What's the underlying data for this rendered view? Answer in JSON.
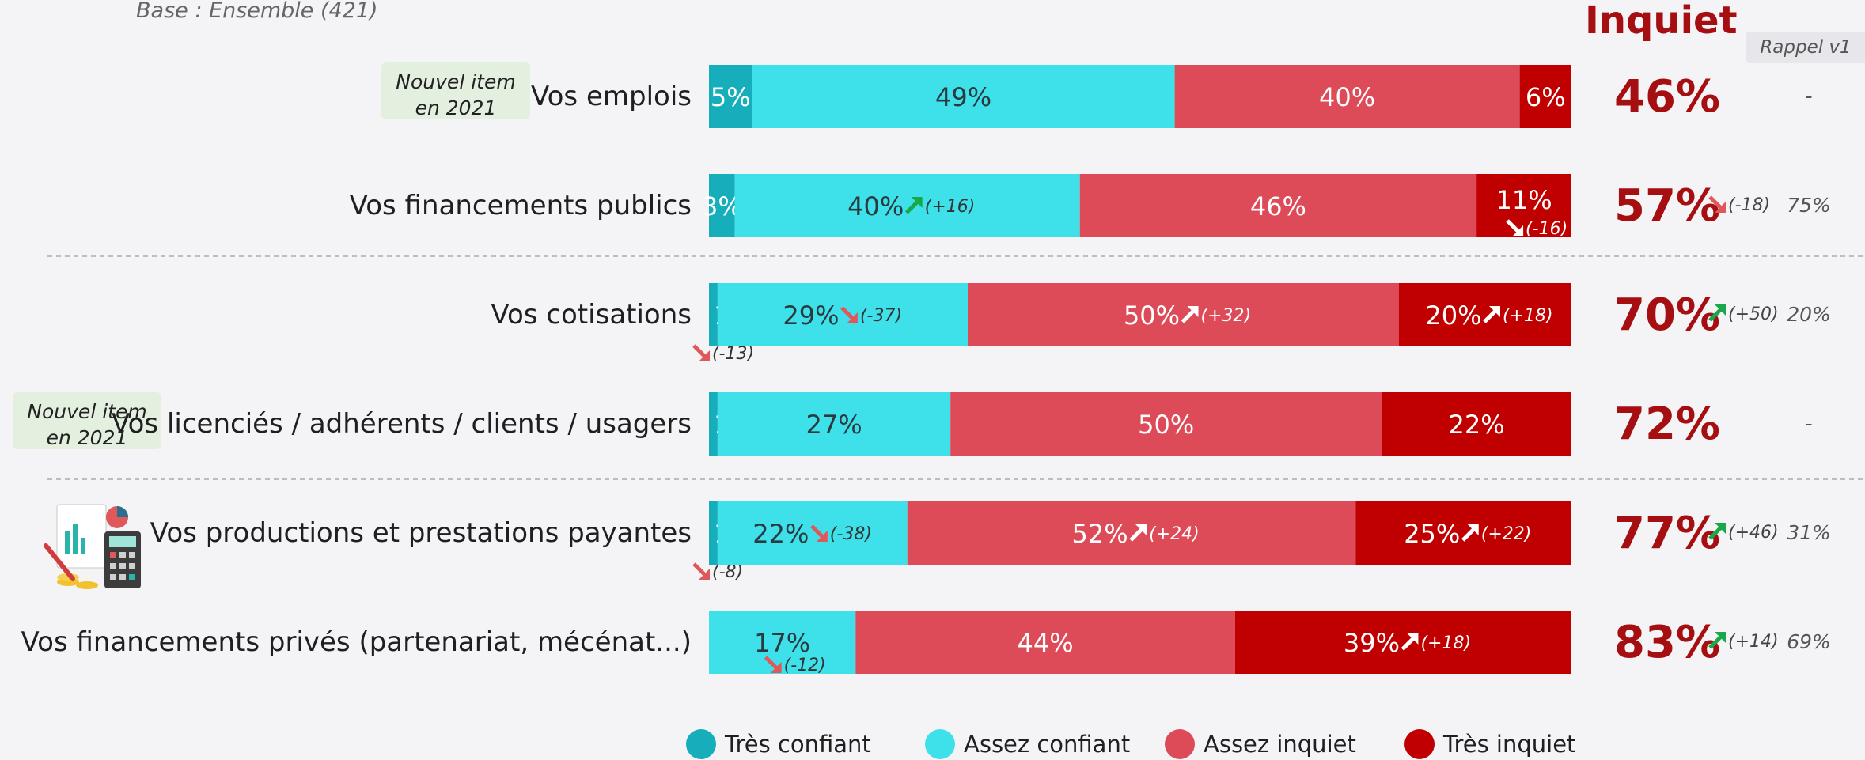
{
  "base_note": "Base : Ensemble (421)",
  "inquiet_title": "Inquiet",
  "rappel_label": "Rappel v1",
  "badges": [
    {
      "line1": "Nouvel item",
      "line2": "en 2021"
    },
    {
      "line1": "Nouvel item",
      "line2": "en 2021"
    }
  ],
  "colors": {
    "tres_confiant": "#17aebc",
    "assez_confiant": "#3ee1e9",
    "assez_inquiet": "#dd4b58",
    "tres_inquiet": "#c00000",
    "inquiet_text": "#a50f12",
    "arrow_up": "#18a84a",
    "arrow_down": "#e0585a"
  },
  "chart_data": {
    "type": "bar",
    "orientation": "horizontal",
    "stacked": true,
    "xlim": [
      0,
      100
    ],
    "legend_position": "bottom",
    "series_names": [
      "Très confiant",
      "Assez confiant",
      "Assez inquiet",
      "Très inquiet"
    ],
    "categories": [
      {
        "label": "Vos emplois",
        "new": true,
        "values": [
          5,
          49,
          40,
          6
        ],
        "value_labels": [
          "5%",
          "49%",
          "40%",
          "6%"
        ],
        "changes": [
          null,
          null,
          null,
          null
        ],
        "inquiet_total": "46%",
        "inquiet_change": null,
        "rappel": "-"
      },
      {
        "label": "Vos financements publics",
        "new": false,
        "values": [
          3,
          40,
          46,
          11
        ],
        "value_labels": [
          "3%",
          "40%",
          "46%",
          "11%"
        ],
        "changes": [
          null,
          "(+16)",
          null,
          "(-16)"
        ],
        "inquiet_total": "57%",
        "inquiet_change": "(-18)",
        "rappel": "75%"
      },
      {
        "label": "Vos cotisations",
        "new": false,
        "values": [
          1,
          29,
          50,
          20
        ],
        "value_labels": [
          "1%",
          "29%",
          "50%",
          "20%"
        ],
        "changes": [
          "(-13)",
          "(-37)",
          "(+32)",
          "(+18)"
        ],
        "inquiet_total": "70%",
        "inquiet_change": "(+50)",
        "rappel": "20%"
      },
      {
        "label": "Vos licenciés / adhérents / clients / usagers",
        "new": true,
        "values": [
          1,
          27,
          50,
          22
        ],
        "value_labels": [
          "1%",
          "27%",
          "50%",
          "22%"
        ],
        "changes": [
          null,
          null,
          null,
          null
        ],
        "inquiet_total": "72%",
        "inquiet_change": null,
        "rappel": "-"
      },
      {
        "label": "Vos productions et prestations payantes",
        "new": false,
        "values": [
          1,
          22,
          52,
          25
        ],
        "value_labels": [
          "1%",
          "22%",
          "52%",
          "25%"
        ],
        "changes": [
          "(-8)",
          "(-38)",
          "(+24)",
          "(+22)"
        ],
        "inquiet_total": "77%",
        "inquiet_change": "(+46)",
        "rappel": "31%"
      },
      {
        "label": "Vos financements privés (partenariat, mécénat...)",
        "new": false,
        "values": [
          0,
          17,
          44,
          39
        ],
        "value_labels": [
          "",
          "17%",
          "44%",
          "39%"
        ],
        "changes": [
          null,
          "(-12)",
          null,
          "(+18)"
        ],
        "inquiet_total": "83%",
        "inquiet_change": "(+14)",
        "rappel": "69%"
      }
    ]
  }
}
